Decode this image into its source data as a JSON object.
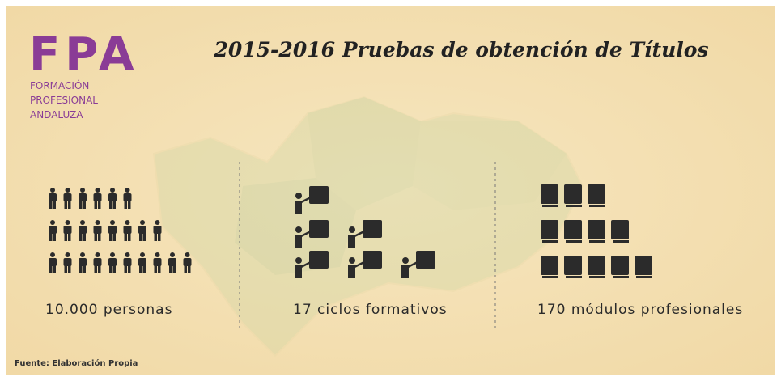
{
  "logo": {
    "text": "FPA",
    "lines": [
      "FORMACIÓN",
      "PROFESIONAL",
      "ANDALUZA"
    ]
  },
  "title": "2015-2016 Pruebas de obtención de Títulos",
  "stats": [
    "10.000 personas",
    "17 ciclos formativos",
    "170 módulos profesionales"
  ],
  "source": "Fuente: Elaboración Propia"
}
